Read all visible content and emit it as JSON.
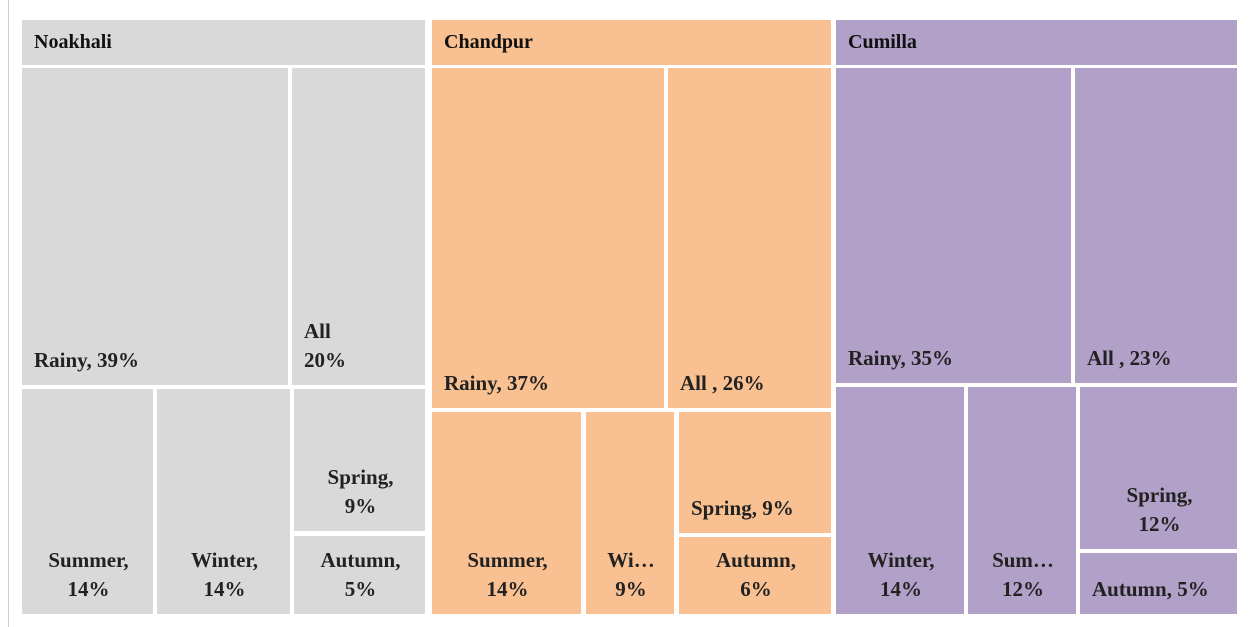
{
  "chart_data": {
    "type": "treemap",
    "groups": [
      {
        "name": "Noakhali",
        "color": "#d9d9d9",
        "values": [
          39,
          20,
          14,
          14,
          9,
          5
        ],
        "value_labels": [
          "Rainy, 39%",
          "All\n20%",
          "Summer,\n14%",
          "Winter,\n14%",
          "Spring,\n9%",
          "Autumn,\n5%"
        ]
      },
      {
        "name": "Chandpur",
        "color": "#f9c191",
        "values": [
          37,
          26,
          14,
          9,
          9,
          6
        ],
        "value_labels": [
          "Rainy, 37%",
          "All , 26%",
          "Summer,\n14%",
          "Wi…\n9%",
          "Spring, 9%",
          "Autumn,\n6%"
        ]
      },
      {
        "name": "Cumilla",
        "color": "#b1a0c7",
        "values": [
          35,
          23,
          14,
          12,
          12,
          5
        ],
        "value_labels": [
          "Rainy, 35%",
          "All , 23%",
          "Winter,\n14%",
          "Sum…\n12%",
          "Spring,\n12%",
          "Autumn, 5%"
        ]
      }
    ]
  }
}
